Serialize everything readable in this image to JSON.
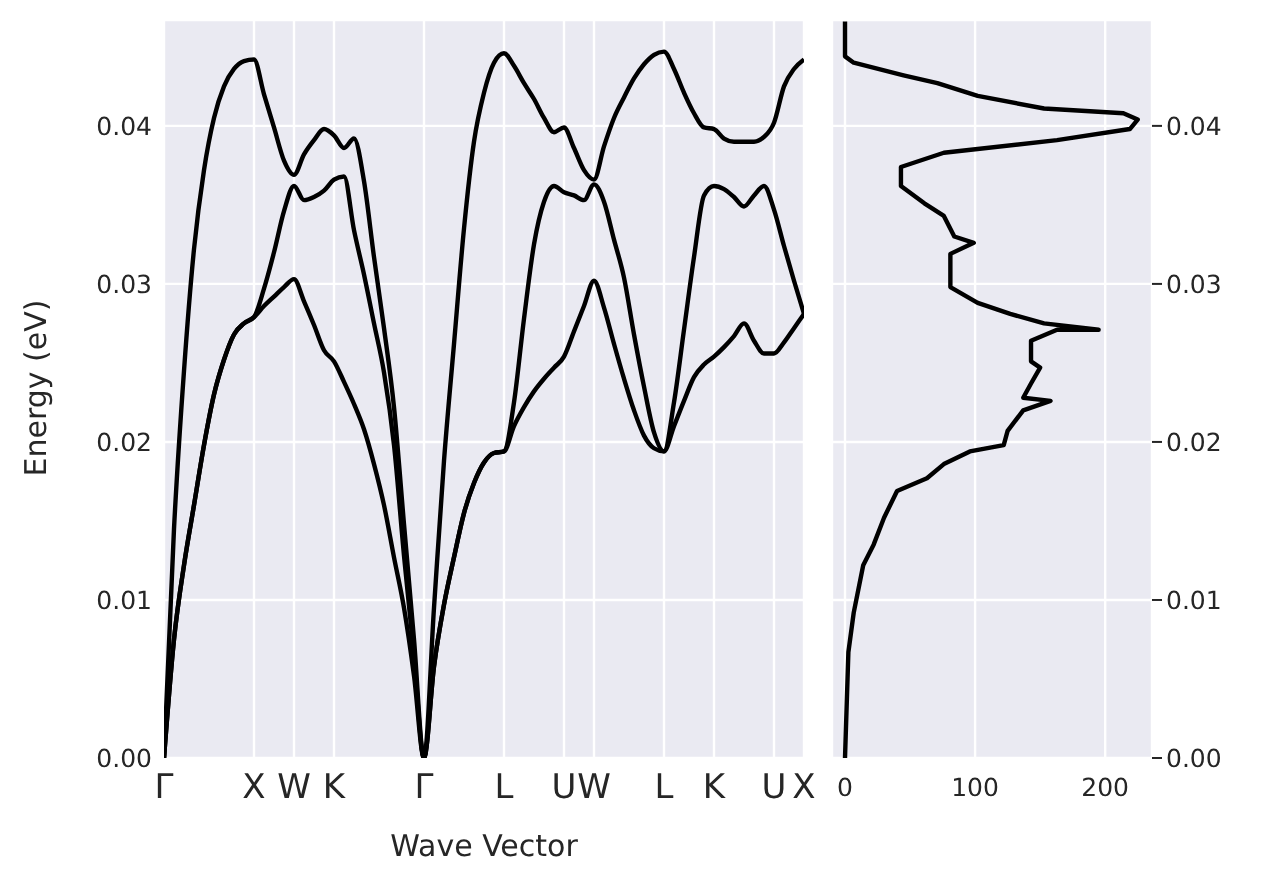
{
  "chart_data": [
    {
      "type": "line",
      "xlabel": "Wave Vector",
      "ylabel": "Energy (eV)",
      "grid": true,
      "ylim": [
        0,
        0.0467
      ],
      "categories": [
        "Γ",
        null,
        null,
        null,
        null,
        null,
        null,
        null,
        null,
        "X",
        null,
        null,
        null,
        "W",
        null,
        null,
        null,
        "K",
        null,
        null,
        null,
        null,
        null,
        null,
        null,
        null,
        "Γ",
        null,
        null,
        null,
        null,
        null,
        null,
        null,
        "L",
        null,
        null,
        null,
        null,
        null,
        "U",
        null,
        null,
        "W",
        null,
        null,
        null,
        null,
        null,
        null,
        "L",
        null,
        null,
        null,
        null,
        "K",
        null,
        null,
        null,
        null,
        null,
        "U",
        null,
        null,
        "X"
      ],
      "yticks": [
        {
          "value": 0,
          "label": "0.00"
        },
        {
          "value": 0.01,
          "label": "0.01"
        },
        {
          "value": 0.02,
          "label": "0.02"
        },
        {
          "value": 0.03,
          "label": "0.03"
        },
        {
          "value": 0.04,
          "label": "0.04"
        }
      ],
      "series": [
        {
          "color": "#000000",
          "values": [
            0,
            0.0075,
            0.0122,
            0.016,
            0.0198,
            0.023,
            0.0252,
            0.0268,
            0.0275,
            0.0279,
            0.0286,
            0.0292,
            0.0298,
            0.0303,
            0.0289,
            0.0274,
            0.0258,
            0.0251,
            0.0238,
            0.0224,
            0.0208,
            0.0186,
            0.016,
            0.0127,
            0.0095,
            0.0052,
            0,
            0.0058,
            0.0097,
            0.0127,
            0.0155,
            0.0174,
            0.0187,
            0.0193,
            0.0194,
            0.021,
            0.0222,
            0.0232,
            0.024,
            0.0247,
            0.0254,
            0.027,
            0.0286,
            0.0302,
            0.0285,
            0.0262,
            0.024,
            0.022,
            0.0204,
            0.0196,
            0.0194,
            0.021,
            0.0226,
            0.0241,
            0.0249,
            0.0254,
            0.026,
            0.0267,
            0.0275,
            0.0264,
            0.0256,
            0.0256,
            0.0263,
            0.0272,
            0.0281
          ]
        },
        {
          "color": "#000000",
          "values": [
            0,
            0.0075,
            0.0122,
            0.016,
            0.0198,
            0.023,
            0.0252,
            0.0268,
            0.0275,
            0.0279,
            0.0297,
            0.032,
            0.0346,
            0.0362,
            0.0353,
            0.0355,
            0.0359,
            0.0366,
            0.0368,
            0.0334,
            0.0306,
            0.0275,
            0.0244,
            0.0198,
            0.0128,
            0.0065,
            0,
            0.0058,
            0.0097,
            0.0127,
            0.0155,
            0.0174,
            0.0187,
            0.0193,
            0.0194,
            0.0225,
            0.0278,
            0.0325,
            0.0352,
            0.0362,
            0.0358,
            0.0356,
            0.0353,
            0.0363,
            0.0352,
            0.0328,
            0.0304,
            0.0268,
            0.0235,
            0.0206,
            0.0194,
            0.0225,
            0.0271,
            0.0317,
            0.0356,
            0.0362,
            0.036,
            0.0355,
            0.0349,
            0.0356,
            0.0362,
            0.0347,
            0.0324,
            0.0302,
            0.0281
          ]
        },
        {
          "color": "#000000",
          "values": [
            0,
            0.0145,
            0.0245,
            0.0322,
            0.0372,
            0.0405,
            0.0425,
            0.0436,
            0.0441,
            0.0442,
            0.042,
            0.0399,
            0.0378,
            0.0369,
            0.0382,
            0.0391,
            0.0398,
            0.0394,
            0.0386,
            0.0392,
            0.0365,
            0.0317,
            0.0272,
            0.0222,
            0.0148,
            0.0075,
            0,
            0.0095,
            0.0188,
            0.0262,
            0.0335,
            0.039,
            0.0421,
            0.044,
            0.0446,
            0.0438,
            0.0427,
            0.0417,
            0.0405,
            0.0396,
            0.0399,
            0.0386,
            0.0372,
            0.0366,
            0.0387,
            0.0405,
            0.0418,
            0.043,
            0.0439,
            0.0445,
            0.0447,
            0.0436,
            0.0421,
            0.0408,
            0.0399,
            0.0398,
            0.0392,
            0.039,
            0.039,
            0.039,
            0.0393,
            0.0402,
            0.0425,
            0.0436,
            0.0442
          ]
        }
      ]
    },
    {
      "type": "line",
      "grid": true,
      "xlim": [
        -10,
        236
      ],
      "ylim": [
        0,
        0.0467
      ],
      "xticks": [
        0,
        100,
        200
      ],
      "yticks": [
        {
          "value": 0,
          "label": "0.00"
        },
        {
          "value": 0.01,
          "label": "0.01"
        },
        {
          "value": 0.02,
          "label": "0.02"
        },
        {
          "value": 0.03,
          "label": "0.03"
        },
        {
          "value": 0.04,
          "label": "0.04"
        }
      ],
      "series": [
        {
          "color": "#000000",
          "x": [
            0,
            2.6,
            6.7,
            14,
            22,
            30,
            40,
            63,
            76,
            96,
            122,
            125,
            137,
            158,
            137,
            143,
            150,
            143,
            143,
            163,
            195,
            153,
            127,
            102,
            81,
            81,
            99,
            84,
            76,
            61,
            43,
            43,
            76,
            163,
            219,
            225,
            214,
            153,
            102,
            71,
            45,
            6.7,
            0,
            0
          ],
          "values": [
            0,
            0.0067,
            0.0092,
            0.0122,
            0.0135,
            0.0152,
            0.0169,
            0.0177,
            0.0186,
            0.0194,
            0.0198,
            0.0207,
            0.022,
            0.0226,
            0.0228,
            0.0237,
            0.0247,
            0.0251,
            0.0264,
            0.0271,
            0.0271,
            0.0275,
            0.0281,
            0.0288,
            0.0298,
            0.0319,
            0.0326,
            0.033,
            0.0343,
            0.0351,
            0.0362,
            0.0374,
            0.0383,
            0.0391,
            0.0398,
            0.0404,
            0.0408,
            0.0411,
            0.0419,
            0.0427,
            0.0432,
            0.044,
            0.0444,
            0.0466
          ]
        }
      ]
    }
  ]
}
